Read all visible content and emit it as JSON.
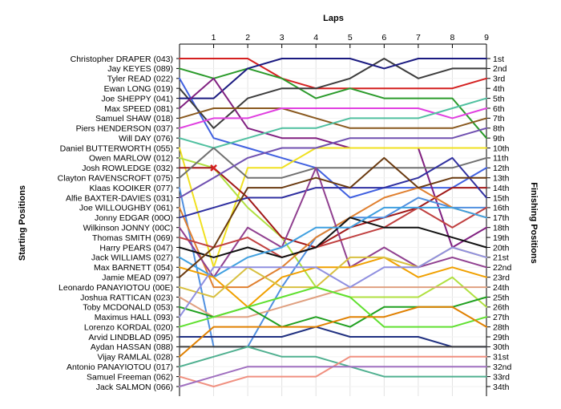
{
  "chart_data": {
    "type": "line",
    "title": "",
    "top_axis_label": "Laps",
    "left_axis_label": "Starting Positions",
    "right_axis_label": "Finishing Positions",
    "laps": [
      1,
      2,
      3,
      4,
      5,
      6,
      7,
      8,
      9
    ],
    "drivers": [
      "Christopher DRAPER (043)",
      "Jay KEYES (089)",
      "Tyler READ (022)",
      "Ewan LONG (019)",
      "Joe SHEPPY (041)",
      "Max SPEED (081)",
      "Samuel SHAW (018)",
      "Piers HENDERSON (037)",
      "Will DAY (076)",
      "Daniel BUTTERWORTH (055)",
      "Owen MARLOW (012)",
      "Josh ROWLEDGE (032)",
      "Clayton RAVENSCROFT (075)",
      "Klaas KOOIKER (077)",
      "Alfie BAXTER-DAVIES (031)",
      "Joe WILLOUGHBY (061)",
      "Jonny EDGAR (00O)",
      "Wilkinson JONNY (00C)",
      "Thomas SMITH (069)",
      "Harry PEARS (047)",
      "Jack WILLIAMS (027)",
      "Max BARNETT (054)",
      "Jamie MEAD (097)",
      "Leonardo PANAYIOTOU (00E)",
      "Joshua RATTICAN (023)",
      "Toby MCDONALD (053)",
      "Maximus HALL (093)",
      "Lorenzo KORDAL (020)",
      "Arvid LINDBLAD (095)",
      "Aydan HASSAN (088)",
      "Vijay RAMLAL (028)",
      "Antonio PANAYIOTOU (017)",
      "Samuel Freeman (062)",
      "Jack SALMON (066)"
    ],
    "finishing_labels": [
      "1st",
      "2nd",
      "3rd",
      "4th",
      "5th",
      "6th",
      "7th",
      "8th",
      "9th",
      "10th",
      "11th",
      "12th",
      "13th",
      "14th",
      "15th",
      "16th",
      "17th",
      "18th",
      "19th",
      "20th",
      "21st",
      "22nd",
      "23rd",
      "24th",
      "25th",
      "26th",
      "27th",
      "28th",
      "29th",
      "30th",
      "31st",
      "32nd",
      "33rd",
      "34th"
    ],
    "series": [
      {
        "color": "#d42020",
        "positions": [
          1,
          1,
          1,
          3,
          4,
          4,
          4,
          4,
          4,
          3
        ]
      },
      {
        "color": "#2a9a2a",
        "positions": [
          2,
          3,
          2,
          3,
          5,
          4,
          5,
          5,
          5,
          9
        ]
      },
      {
        "color": "#4060e0",
        "positions": [
          3,
          9,
          10,
          11,
          12,
          15,
          14,
          14,
          14,
          12
        ]
      },
      {
        "color": "#3c3c3c",
        "positions": [
          4,
          8,
          5,
          4,
          4,
          3,
          1,
          3,
          2,
          2
        ]
      },
      {
        "color": "#1a1a80",
        "positions": [
          5,
          5,
          2,
          1,
          1,
          1,
          2,
          1,
          1,
          1
        ]
      },
      {
        "color": "#802080",
        "positions": [
          6,
          3,
          8,
          9,
          9,
          10,
          10,
          10,
          20,
          18
        ]
      },
      {
        "color": "#8a5a20",
        "positions": [
          7,
          6,
          6,
          6,
          7,
          8,
          8,
          8,
          8,
          7
        ]
      },
      {
        "color": "#e040e0",
        "positions": [
          8,
          7,
          7,
          6,
          6,
          6,
          6,
          6,
          7,
          6
        ]
      },
      {
        "color": "#50c0a0",
        "positions": [
          9,
          10,
          9,
          8,
          8,
          7,
          7,
          7,
          6,
          5
        ]
      },
      {
        "color": "#f0e020",
        "positions": [
          10,
          22,
          12,
          12,
          10,
          10,
          10,
          10,
          10,
          10
        ]
      },
      {
        "color": "#b0e040",
        "positions": [
          11,
          12,
          16,
          19,
          24,
          25,
          25,
          25,
          23,
          26
        ]
      },
      {
        "color": "#a01818",
        "positions": [
          12,
          12,
          15,
          19,
          20,
          18,
          17,
          16,
          14,
          14
        ]
      },
      {
        "color": "#707070",
        "positions": [
          13,
          10,
          13,
          13,
          12,
          12,
          12,
          12,
          12,
          11
        ]
      },
      {
        "color": "#5090e0",
        "positions": [
          14,
          30,
          30,
          24,
          19,
          17,
          17,
          15,
          16,
          16
        ]
      },
      {
        "color": "#7050b0",
        "positions": [
          15,
          13,
          11,
          10,
          10,
          9,
          9,
          9,
          9,
          8
        ]
      },
      {
        "color": "#e08030",
        "positions": [
          16,
          24,
          24,
          22,
          19,
          17,
          15,
          14,
          16,
          17
        ]
      },
      {
        "color": "#3030a0",
        "positions": [
          17,
          16,
          15,
          15,
          14,
          14,
          14,
          13,
          11,
          15
        ]
      },
      {
        "color": "#904090",
        "positions": [
          18,
          23,
          18,
          20,
          12,
          22,
          20,
          22,
          21,
          22
        ]
      },
      {
        "color": "#c04040",
        "positions": [
          19,
          20,
          19,
          21,
          20,
          19,
          18,
          16,
          18,
          16
        ]
      },
      {
        "color": "#101010",
        "positions": [
          20,
          21,
          20,
          21,
          20,
          17,
          18,
          18,
          19,
          20
        ]
      },
      {
        "color": "#40a0e0",
        "positions": [
          21,
          23,
          21,
          20,
          18,
          18,
          16,
          16,
          16,
          17
        ]
      },
      {
        "color": "#f0a000",
        "positions": [
          22,
          23,
          26,
          23,
          22,
          22,
          21,
          23,
          22,
          23
        ]
      },
      {
        "color": "#6a3a10",
        "positions": [
          23,
          20,
          14,
          14,
          13,
          14,
          11,
          14,
          13,
          13
        ]
      },
      {
        "color": "#d8c040",
        "positions": [
          24,
          25,
          22,
          24,
          24,
          21,
          21,
          22,
          20,
          21
        ]
      },
      {
        "color": "#e0a080",
        "positions": [
          25,
          27,
          27,
          26,
          25,
          24,
          24,
          24,
          24,
          24
        ]
      },
      {
        "color": "#20a020",
        "positions": [
          26,
          27,
          26,
          28,
          27,
          28,
          26,
          26,
          26,
          25
        ]
      },
      {
        "color": "#9090e0",
        "positions": [
          27,
          22,
          22,
          22,
          22,
          24,
          22,
          22,
          20,
          21
        ]
      },
      {
        "color": "#60e030",
        "positions": [
          28,
          27,
          26,
          25,
          24,
          25,
          28,
          28,
          28,
          27
        ]
      },
      {
        "color": "#203080",
        "positions": [
          29,
          29,
          29,
          29,
          28,
          29,
          29,
          29,
          30,
          30
        ]
      },
      {
        "color": "#404040",
        "positions": [
          30,
          30,
          30,
          30,
          30,
          30,
          30,
          30,
          30,
          30
        ]
      },
      {
        "color": "#e08000",
        "positions": [
          31,
          28,
          28,
          28,
          28,
          27,
          27,
          26,
          26,
          28
        ]
      },
      {
        "color": "#50b090",
        "positions": [
          32,
          31,
          30,
          31,
          31,
          32,
          33,
          33,
          33,
          33
        ]
      },
      {
        "color": "#f09080",
        "positions": [
          33,
          34,
          33,
          33,
          33,
          31,
          31,
          31,
          31,
          31
        ]
      },
      {
        "color": "#a070c0",
        "positions": [
          34,
          33,
          32,
          32,
          32,
          32,
          32,
          32,
          32,
          32
        ]
      }
    ],
    "markers": [
      {
        "type": "x",
        "lap": 1,
        "position": 12,
        "color": "#d42020"
      }
    ],
    "grid": true,
    "legend": "none"
  }
}
